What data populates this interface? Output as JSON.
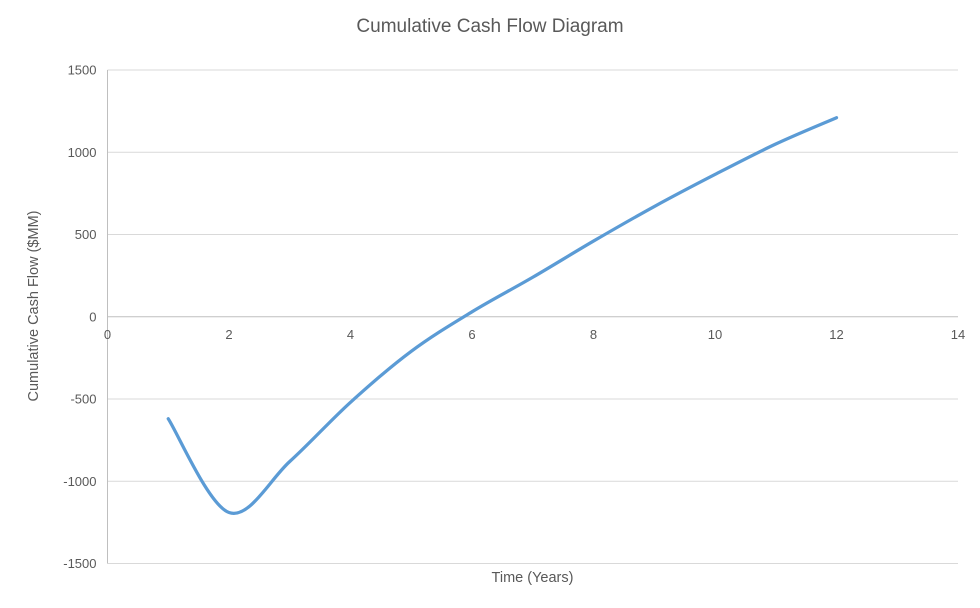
{
  "chart_data": {
    "type": "line",
    "title": "Cumulative Cash Flow Diagram",
    "xlabel": "Time (Years)",
    "ylabel": "Cumulative Cash Flow ($MM)",
    "x": [
      1,
      2,
      3,
      4,
      5,
      6,
      7,
      8,
      9,
      10,
      11,
      12
    ],
    "values": [
      -620,
      -1190,
      -880,
      -520,
      -210,
      30,
      240,
      460,
      670,
      865,
      1050,
      1210
    ],
    "xlim": [
      0,
      14
    ],
    "ylim": [
      -1500,
      1500
    ],
    "xticks": [
      0,
      2,
      4,
      6,
      8,
      10,
      12,
      14
    ],
    "yticks": [
      -1500,
      -1000,
      -500,
      0,
      500,
      1000,
      1500
    ],
    "grid": "horizontal",
    "legend": "none",
    "smooth": true,
    "markers": false,
    "line_color": "#5B9BD5",
    "line_width": 3.25,
    "gridline_color": "#D9D9D9",
    "axis_color": "#BFBFBF",
    "text_color": "#595959"
  }
}
